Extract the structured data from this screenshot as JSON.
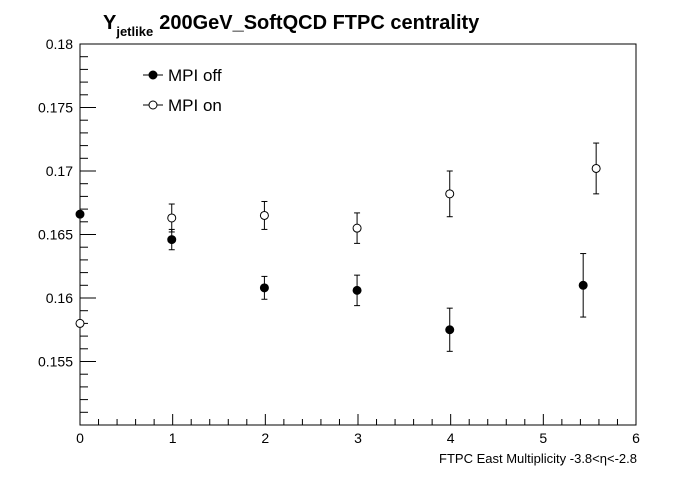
{
  "chart_data": {
    "type": "scatter",
    "title": {
      "symbol": "Y",
      "subscript": "jetlike",
      "rest": "200GeV_SoftQCD FTPC centrality"
    },
    "xlabel": {
      "prefix": "FTPC East Multiplicity -3.8<",
      "symbol": "η",
      "suffix": "<-2.8"
    },
    "ylabel": "",
    "xlim": [
      0,
      6
    ],
    "ylim": [
      0.15,
      0.18
    ],
    "x_ticks": [
      0,
      1,
      2,
      3,
      4,
      5,
      6
    ],
    "x_tick_labels": [
      "0",
      "1",
      "2",
      "3",
      "4",
      "5",
      "6"
    ],
    "y_ticks": [
      0.155,
      0.16,
      0.165,
      0.17,
      0.175,
      0.18
    ],
    "y_tick_labels": [
      "0.155",
      "0.16",
      "0.165",
      "0.17",
      "0.175",
      "0.18"
    ],
    "grid": false,
    "legend_position": "top-left",
    "series": [
      {
        "name": "MPI off",
        "marker": "filled-circle",
        "color": "#000000",
        "points": [
          {
            "x": 0.0,
            "y": 0.1666,
            "err": 0.0
          },
          {
            "x": 0.99,
            "y": 0.1646,
            "err": 0.0008
          },
          {
            "x": 1.99,
            "y": 0.1608,
            "err": 0.0009
          },
          {
            "x": 2.99,
            "y": 0.1606,
            "err": 0.0012
          },
          {
            "x": 3.99,
            "y": 0.1575,
            "err": 0.0017
          },
          {
            "x": 5.43,
            "y": 0.161,
            "err": 0.0025
          }
        ]
      },
      {
        "name": "MPI on",
        "marker": "open-circle",
        "color": "#000000",
        "points": [
          {
            "x": 0.0,
            "y": 0.158,
            "err": 0.0
          },
          {
            "x": 0.99,
            "y": 0.1663,
            "err": 0.0011
          },
          {
            "x": 1.99,
            "y": 0.1665,
            "err": 0.0011
          },
          {
            "x": 2.99,
            "y": 0.1655,
            "err": 0.0012
          },
          {
            "x": 3.99,
            "y": 0.1682,
            "err": 0.0018
          },
          {
            "x": 5.57,
            "y": 0.1702,
            "err": 0.002
          }
        ]
      }
    ]
  }
}
